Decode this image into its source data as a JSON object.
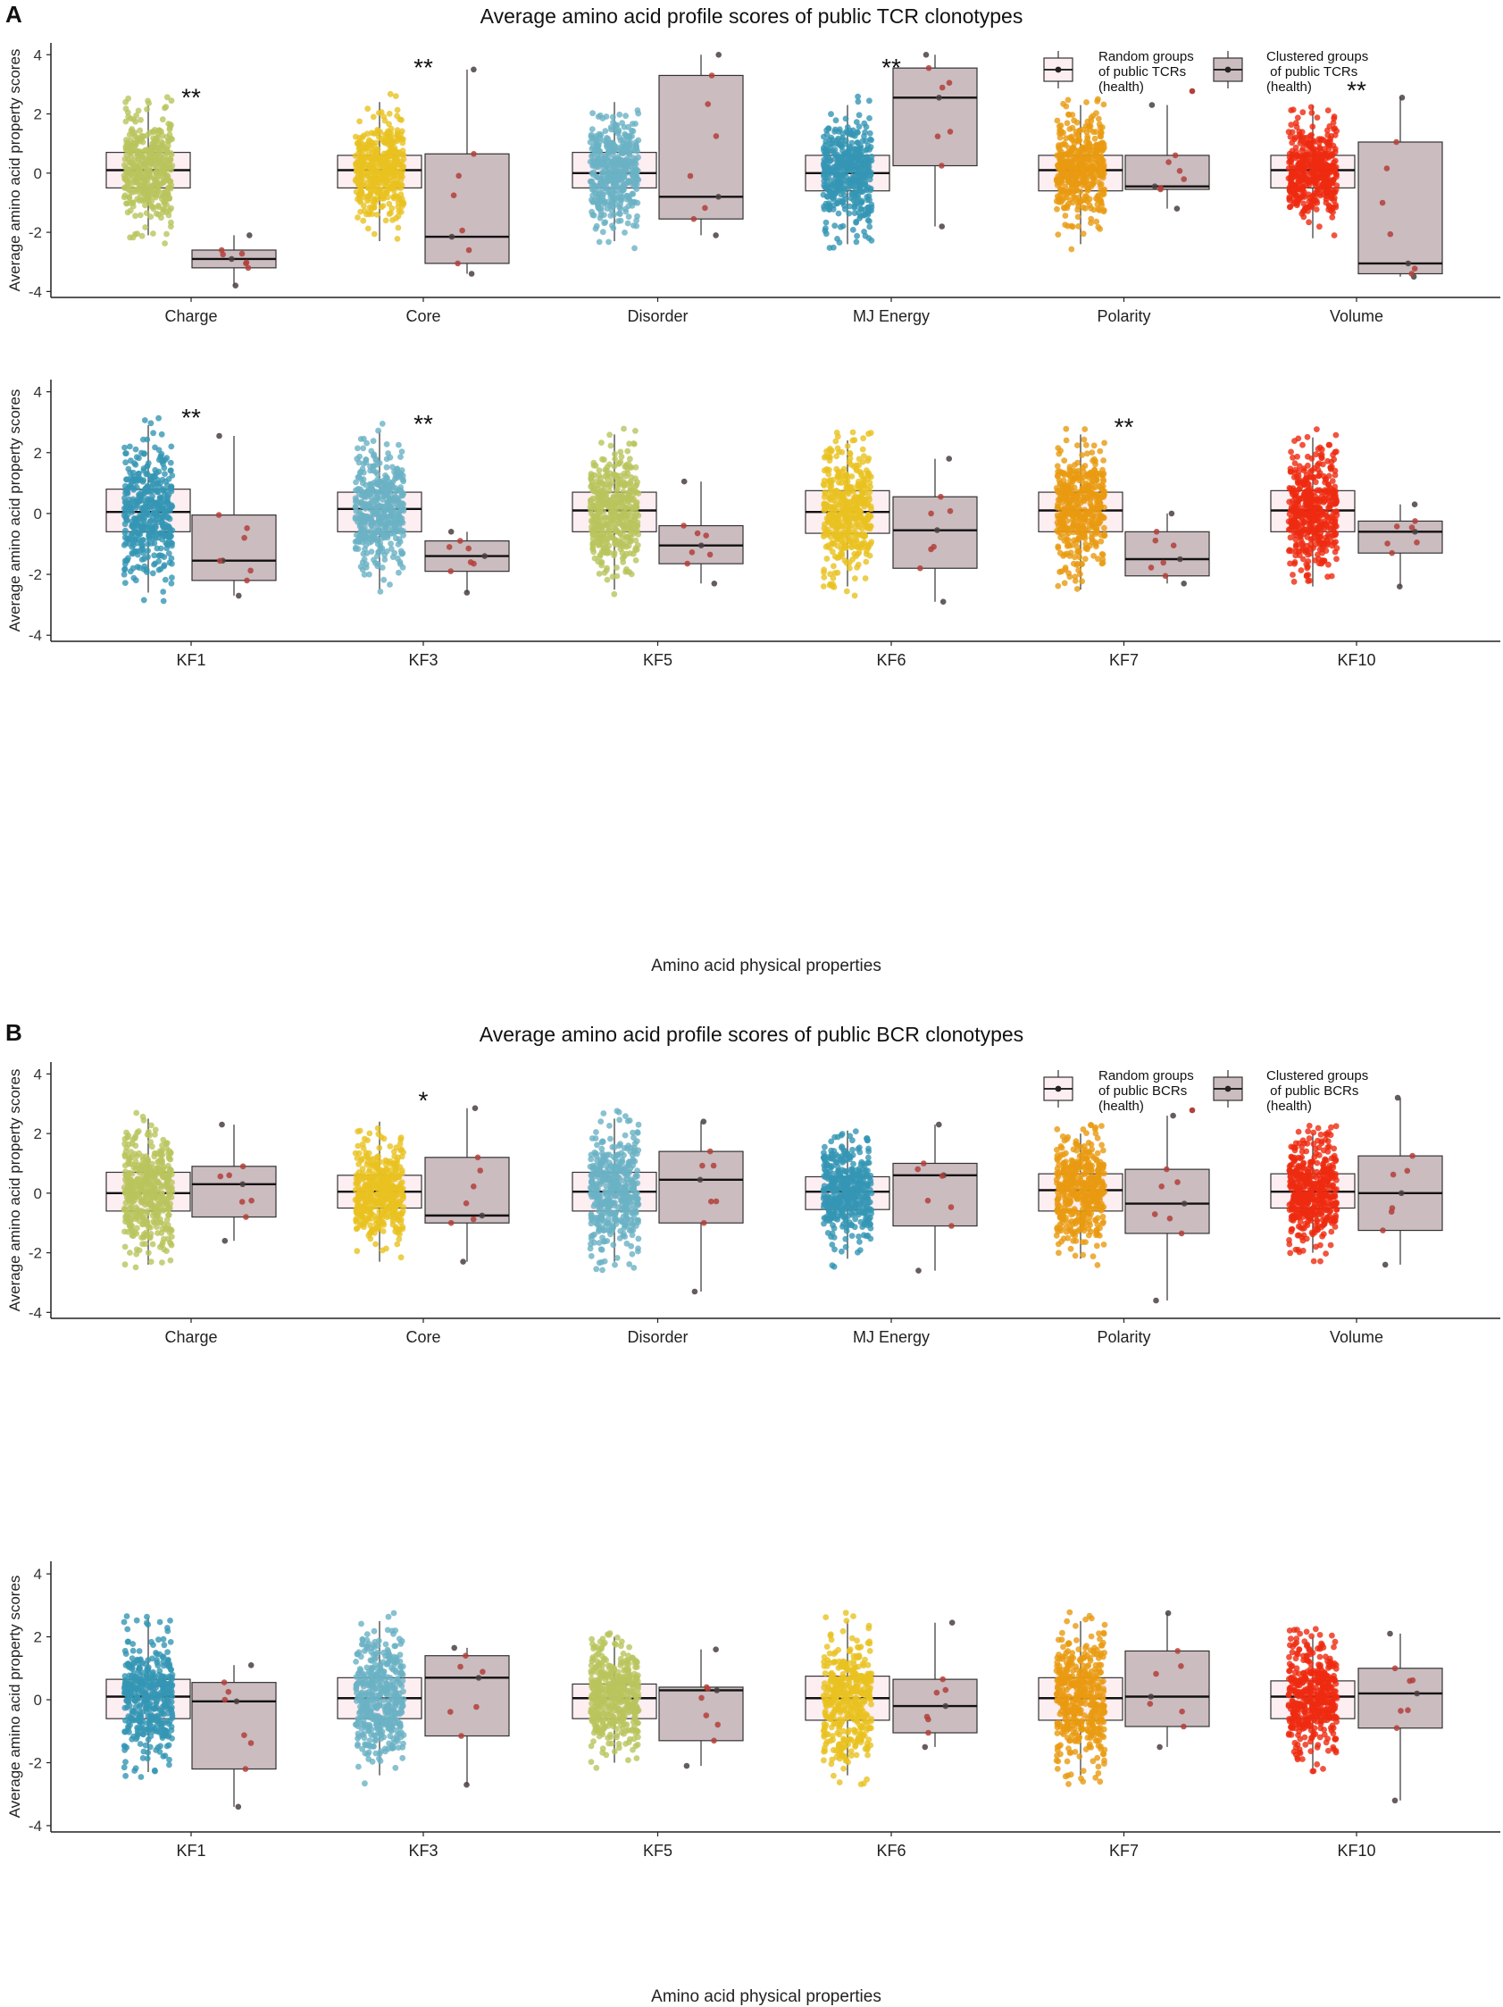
{
  "panels": [
    {
      "letter": "A",
      "title": "Average amino acid profile scores of public TCR clonotypes",
      "legend": {
        "random": [
          "Random groups",
          "of public TCRs",
          "(health)"
        ],
        "clustered": [
          "Clustered groups",
          " of public TCRs",
          "(health)"
        ]
      }
    },
    {
      "letter": "B",
      "title": "Average amino acid profile scores of public BCR clonotypes",
      "legend": {
        "random": [
          "Random groups",
          "of public BCRs",
          "(health)"
        ],
        "clustered": [
          "Clustered groups",
          " of public BCRs",
          "(health)"
        ]
      }
    }
  ],
  "xlabel": "Amino acid physical properties",
  "colors": {
    "Charge": "#b9c45c",
    "Core": "#e8c220",
    "Disorder": "#6ab1c4",
    "MJ Energy": "#3496b4",
    "Polarity": "#e89a10",
    "Volume": "#ee2a10",
    "KF1": "#3496b4",
    "KF3": "#6ab1c4",
    "KF5": "#b9c45c",
    "KF6": "#e8c220",
    "KF7": "#e89a10",
    "KF10": "#ee2a10",
    "randomFill": "#fdeef2",
    "clusteredFill": "#cbbcc0"
  },
  "chart_data": [
    {
      "type": "box",
      "panel": "A",
      "ylabel": "Average amino acid property scores",
      "ylim": [
        -4.2,
        4.4
      ],
      "yticks": [
        -4,
        -2,
        0,
        2,
        4
      ],
      "categories": [
        "Charge",
        "Core",
        "Disorder",
        "MJ Energy",
        "Polarity",
        "Volume"
      ],
      "series": [
        {
          "name": "Random groups of public TCRs (health)",
          "boxes": [
            [
              -2.1,
              -0.5,
              0.1,
              0.7,
              2.3
            ],
            [
              -2.3,
              -0.5,
              0.1,
              0.6,
              2.4
            ],
            [
              -2.3,
              -0.5,
              0.0,
              0.7,
              2.4
            ],
            [
              -2.4,
              -0.6,
              0.0,
              0.6,
              2.3
            ],
            [
              -2.4,
              -0.6,
              0.1,
              0.6,
              2.3
            ],
            [
              -2.2,
              -0.5,
              0.1,
              0.6,
              2.3
            ]
          ]
        },
        {
          "name": "Clustered groups of public TCRs (health)",
          "boxes": [
            [
              -3.8,
              -3.2,
              -2.9,
              -2.6,
              -2.1
            ],
            [
              -3.4,
              -3.05,
              -2.15,
              0.65,
              3.5
            ],
            [
              -2.1,
              -1.55,
              -0.8,
              3.3,
              4.0
            ],
            [
              -1.8,
              0.25,
              2.55,
              3.55,
              4.0
            ],
            [
              -1.2,
              -0.55,
              -0.45,
              0.6,
              2.3
            ],
            [
              -3.5,
              -3.4,
              -3.05,
              1.05,
              2.55
            ]
          ]
        }
      ],
      "significance": [
        "**",
        "**",
        "",
        "**",
        "",
        "**"
      ]
    },
    {
      "type": "box",
      "panel": "A",
      "ylabel": "Average amino acid property scores",
      "ylim": [
        -4.2,
        4.4
      ],
      "yticks": [
        -4,
        -2,
        0,
        2,
        4
      ],
      "categories": [
        "KF1",
        "KF3",
        "KF5",
        "KF6",
        "KF7",
        "KF10"
      ],
      "series": [
        {
          "name": "Random groups of public TCRs (health)",
          "boxes": [
            [
              -2.6,
              -0.6,
              0.05,
              0.8,
              2.9
            ],
            [
              -2.5,
              -0.6,
              0.15,
              0.7,
              2.7
            ],
            [
              -2.5,
              -0.6,
              0.1,
              0.7,
              2.6
            ],
            [
              -2.4,
              -0.65,
              0.05,
              0.75,
              2.4
            ],
            [
              -2.5,
              -0.6,
              0.1,
              0.7,
              2.6
            ],
            [
              -2.4,
              -0.6,
              0.1,
              0.75,
              2.5
            ]
          ]
        },
        {
          "name": "Clustered groups of public TCRs (health)",
          "boxes": [
            [
              -2.7,
              -2.2,
              -1.55,
              -0.05,
              2.55
            ],
            [
              -2.6,
              -1.9,
              -1.4,
              -0.9,
              -0.6
            ],
            [
              -2.3,
              -1.65,
              -1.05,
              -0.4,
              1.05
            ],
            [
              -2.9,
              -1.8,
              -0.55,
              0.55,
              1.8
            ],
            [
              -2.3,
              -2.05,
              -1.5,
              -0.6,
              0.0
            ],
            [
              -2.4,
              -1.3,
              -0.6,
              -0.25,
              0.3
            ]
          ]
        }
      ],
      "significance": [
        "**",
        "**",
        "",
        "",
        "**",
        ""
      ]
    },
    {
      "type": "box",
      "panel": "B",
      "ylabel": "Average amino acid property scores",
      "ylim": [
        -4.2,
        4.4
      ],
      "yticks": [
        -4,
        -2,
        0,
        2,
        4
      ],
      "categories": [
        "Charge",
        "Core",
        "Disorder",
        "MJ Energy",
        "Polarity",
        "Volume"
      ],
      "series": [
        {
          "name": "Random groups of public BCRs (health)",
          "boxes": [
            [
              -2.4,
              -0.6,
              0.0,
              0.7,
              2.5
            ],
            [
              -2.3,
              -0.5,
              0.05,
              0.6,
              2.4
            ],
            [
              -2.3,
              -0.6,
              0.05,
              0.7,
              2.5
            ],
            [
              -2.2,
              -0.55,
              0.05,
              0.55,
              2.1
            ],
            [
              -2.2,
              -0.6,
              0.1,
              0.65,
              2.0
            ],
            [
              -2.0,
              -0.5,
              0.05,
              0.65,
              2.0
            ]
          ]
        },
        {
          "name": "Clustered groups of public BCRs (health)",
          "boxes": [
            [
              -1.6,
              -0.8,
              0.3,
              0.9,
              2.3
            ],
            [
              -2.3,
              -1.0,
              -0.75,
              1.2,
              2.85
            ],
            [
              -3.3,
              -1.0,
              0.45,
              1.4,
              2.4
            ],
            [
              -2.6,
              -1.1,
              0.6,
              1.0,
              2.3
            ],
            [
              -3.6,
              -1.35,
              -0.35,
              0.8,
              2.6
            ],
            [
              -2.4,
              -1.25,
              0.0,
              1.25,
              3.2
            ]
          ]
        }
      ],
      "significance": [
        "",
        "*",
        "",
        "",
        "",
        ""
      ]
    },
    {
      "type": "box",
      "panel": "B",
      "ylabel": "Average amino acid property scores",
      "ylim": [
        -4.2,
        4.4
      ],
      "yticks": [
        -4,
        -2,
        0,
        2,
        4
      ],
      "categories": [
        "KF1",
        "KF3",
        "KF5",
        "KF6",
        "KF7",
        "KF10"
      ],
      "series": [
        {
          "name": "Random groups of public BCRs (health)",
          "boxes": [
            [
              -2.3,
              -0.6,
              0.1,
              0.65,
              2.6
            ],
            [
              -2.4,
              -0.6,
              0.05,
              0.7,
              2.5
            ],
            [
              -2.0,
              -0.6,
              0.05,
              0.5,
              2.0
            ],
            [
              -2.4,
              -0.65,
              0.05,
              0.75,
              2.5
            ],
            [
              -2.4,
              -0.65,
              0.05,
              0.7,
              2.5
            ],
            [
              -2.2,
              -0.6,
              0.1,
              0.6,
              2.0
            ]
          ]
        },
        {
          "name": "Clustered groups of public BCRs (health)",
          "boxes": [
            [
              -3.4,
              -2.2,
              -0.05,
              0.55,
              1.1
            ],
            [
              -2.7,
              -1.15,
              0.7,
              1.4,
              1.65
            ],
            [
              -2.1,
              -1.3,
              0.3,
              0.4,
              1.6
            ],
            [
              -1.5,
              -1.05,
              -0.2,
              0.65,
              2.45
            ],
            [
              -1.5,
              -0.85,
              0.1,
              1.55,
              2.75
            ],
            [
              -3.2,
              -0.9,
              0.2,
              1.0,
              2.1
            ]
          ]
        }
      ],
      "significance": [
        "",
        "",
        "",
        "",
        "",
        ""
      ]
    }
  ]
}
